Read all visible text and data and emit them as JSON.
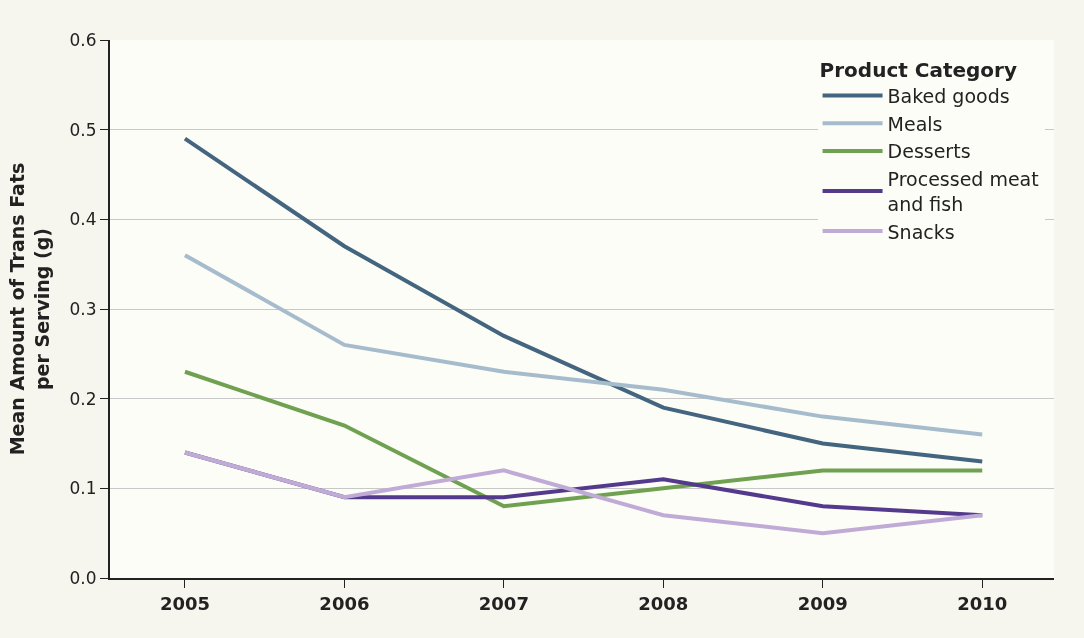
{
  "chart_data": {
    "type": "line",
    "xlabel": null,
    "ylabel": "Mean Amount of Trans Fats\nper Serving (g)",
    "legend_title": "Product Category",
    "x": [
      2005,
      2006,
      2007,
      2008,
      2009,
      2010
    ],
    "series": [
      {
        "name": "Baked goods",
        "color": "#44657f",
        "values": [
          0.49,
          0.37,
          0.27,
          0.19,
          0.15,
          0.13
        ]
      },
      {
        "name": "Meals",
        "color": "#a6bccd",
        "values": [
          0.36,
          0.26,
          0.23,
          0.21,
          0.18,
          0.16
        ]
      },
      {
        "name": "Desserts",
        "color": "#6fa150",
        "values": [
          0.23,
          0.17,
          0.08,
          0.1,
          0.12,
          0.12
        ]
      },
      {
        "name": "Processed meat and fish",
        "color": "#533a8c",
        "values": [
          0.14,
          0.09,
          0.09,
          0.11,
          0.08,
          0.07
        ]
      },
      {
        "name": "Snacks",
        "color": "#c0abd6",
        "values": [
          0.14,
          0.09,
          0.12,
          0.07,
          0.05,
          0.07
        ]
      }
    ],
    "xlim": [
      2004.53,
      2010.45
    ],
    "xticks": [
      2005,
      2006,
      2007,
      2008,
      2009,
      2010
    ],
    "ylim": [
      0,
      0.6
    ],
    "yticks": [
      {
        "value": 0,
        "label": "0.0"
      },
      0.1,
      0.2,
      0.3,
      0.4,
      0.5,
      0.6
    ],
    "grid": "y",
    "legend": "top right",
    "line_style": "solid",
    "marker": "none"
  }
}
